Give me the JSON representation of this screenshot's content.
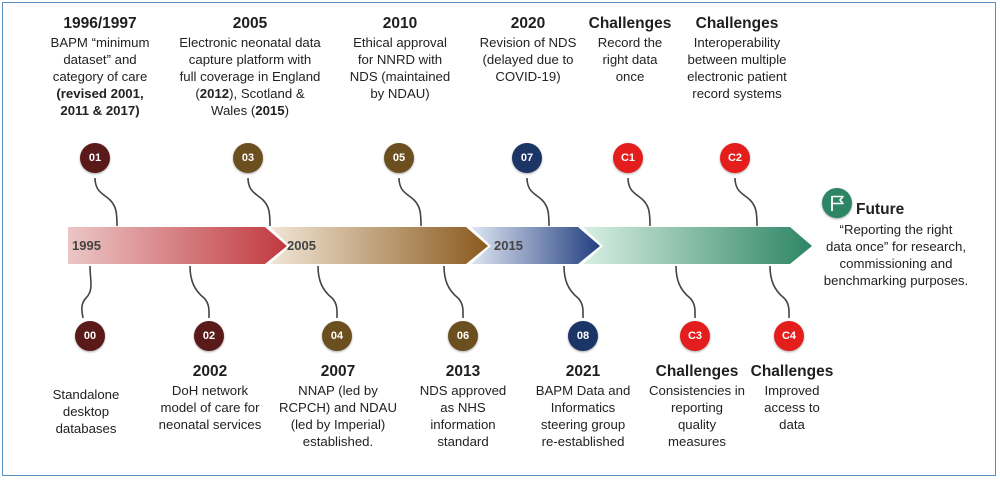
{
  "colors": {
    "dark_red": "#5a1a1a",
    "brown": "#6b4f1f",
    "navy": "#1b3566",
    "bright_red": "#e41d1d",
    "green": "#2e8565",
    "frame": "#5b8fc0"
  },
  "axis_labels": [
    "1995",
    "2005",
    "2015"
  ],
  "top": [
    {
      "id": "01",
      "heading": "1996/1997",
      "lines": [
        "BAPM “minimum",
        "dataset” and",
        "category of care"
      ],
      "bold_lines": [
        "(revised 2001,",
        "2011 & 2017)"
      ]
    },
    {
      "id": "03",
      "heading": "2005",
      "l1": "Electronic neonatal data",
      "l2": "capture platform with",
      "l3": "full coverage in England",
      "l4a": "(",
      "l4b": "2012",
      "l4c": "), Scotland &",
      "l5a": "Wales (",
      "l5b": "2015",
      "l5c": ")"
    },
    {
      "id": "05",
      "heading": "2010",
      "lines": [
        "Ethical approval",
        "for NNRD with",
        "NDS (maintained",
        "by NDAU)"
      ]
    },
    {
      "id": "07",
      "heading": "2020",
      "lines": [
        "Revision of NDS",
        "(delayed due to",
        "COVID-19)"
      ]
    },
    {
      "id": "C1",
      "heading": "Challenges",
      "lines": [
        "Record the",
        "right data",
        "once"
      ]
    },
    {
      "id": "C2",
      "heading": "Challenges",
      "lines": [
        "Interoperability",
        "between multiple",
        "electronic patient",
        "record systems"
      ]
    }
  ],
  "bottom": [
    {
      "id": "00",
      "heading": "",
      "lines": [
        "Standalone",
        "desktop",
        "databases"
      ]
    },
    {
      "id": "02",
      "heading": "2002",
      "lines": [
        "DoH network",
        "model of care for",
        "neonatal services"
      ]
    },
    {
      "id": "04",
      "heading": "2007",
      "lines": [
        "NNAP (led by",
        "RCPCH) and NDAU",
        "(led by Imperial)",
        "established."
      ]
    },
    {
      "id": "06",
      "heading": "2013",
      "lines": [
        "NDS approved",
        "as NHS",
        "information",
        "standard"
      ]
    },
    {
      "id": "08",
      "heading": "2021",
      "lines": [
        "BAPM Data and",
        "Informatics",
        "steering group",
        "re-established"
      ]
    },
    {
      "id": "C3",
      "heading": "Challenges",
      "lines": [
        "Consistencies in",
        "reporting",
        "quality",
        "measures"
      ]
    },
    {
      "id": "C4",
      "heading": "Challenges",
      "lines": [
        "Improved",
        "access to",
        "data"
      ]
    }
  ],
  "future": {
    "heading": "Future",
    "icon": "flag-icon",
    "lines": [
      "“Reporting the right",
      "data once” for research,",
      "commissioning and",
      "benchmarking purposes."
    ]
  }
}
